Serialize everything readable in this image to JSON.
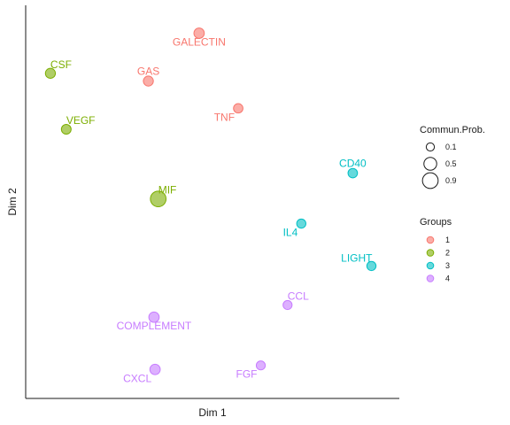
{
  "chart_data": {
    "type": "scatter",
    "title": "",
    "xlabel": "Dim 1",
    "ylabel": "Dim 2",
    "xlim": [
      0,
      100
    ],
    "ylim": [
      0,
      100
    ],
    "grid": false,
    "group_colors": {
      "1": "#F8766D",
      "2": "#7CAE00",
      "3": "#00BFC4",
      "4": "#C77CFF"
    },
    "points": [
      {
        "label": "GALECTIN",
        "x": 46.2,
        "y": 95.8,
        "group": "1",
        "prob": 0.25,
        "label_pos": "below"
      },
      {
        "label": "GAS",
        "x": 31.8,
        "y": 82.8,
        "group": "1",
        "prob": 0.22,
        "label_pos": "above"
      },
      {
        "label": "TNF",
        "x": 57.3,
        "y": 75.4,
        "group": "1",
        "prob": 0.18,
        "label_pos": "below-left"
      },
      {
        "label": "CSF",
        "x": 4.0,
        "y": 84.9,
        "group": "2",
        "prob": 0.22,
        "label_pos": "above-right"
      },
      {
        "label": "VEGF",
        "x": 8.5,
        "y": 69.7,
        "group": "2",
        "prob": 0.2,
        "label_pos": "above-right"
      },
      {
        "label": "MIF",
        "x": 34.6,
        "y": 50.8,
        "group": "2",
        "prob": 0.9,
        "label_pos": "above-right"
      },
      {
        "label": "CD40",
        "x": 89.8,
        "y": 57.8,
        "group": "3",
        "prob": 0.18,
        "label_pos": "above"
      },
      {
        "label": "IL4",
        "x": 75.2,
        "y": 44.1,
        "group": "3",
        "prob": 0.16,
        "label_pos": "below-left"
      },
      {
        "label": "LIGHT",
        "x": 95.1,
        "y": 32.6,
        "group": "3",
        "prob": 0.16,
        "label_pos": "above-left"
      },
      {
        "label": "CCL",
        "x": 71.3,
        "y": 22.0,
        "group": "4",
        "prob": 0.15,
        "label_pos": "above-right"
      },
      {
        "label": "COMPLEMENT",
        "x": 33.4,
        "y": 18.7,
        "group": "4",
        "prob": 0.25,
        "label_pos": "below"
      },
      {
        "label": "CXCL",
        "x": 33.7,
        "y": 4.5,
        "group": "4",
        "prob": 0.25,
        "label_pos": "below-left"
      },
      {
        "label": "FGF",
        "x": 63.7,
        "y": 5.6,
        "group": "4",
        "prob": 0.15,
        "label_pos": "below-left"
      }
    ],
    "legend": {
      "placement": "right",
      "size_title": "Commun.Prob.",
      "size_entries": [
        {
          "label": "0.1",
          "value": 0.1
        },
        {
          "label": "0.5",
          "value": 0.5
        },
        {
          "label": "0.9",
          "value": 0.9
        }
      ],
      "color_title": "Groups",
      "color_entries": [
        {
          "label": "1",
          "group": "1"
        },
        {
          "label": "2",
          "group": "2"
        },
        {
          "label": "3",
          "group": "3"
        },
        {
          "label": "4",
          "group": "4"
        }
      ]
    }
  }
}
